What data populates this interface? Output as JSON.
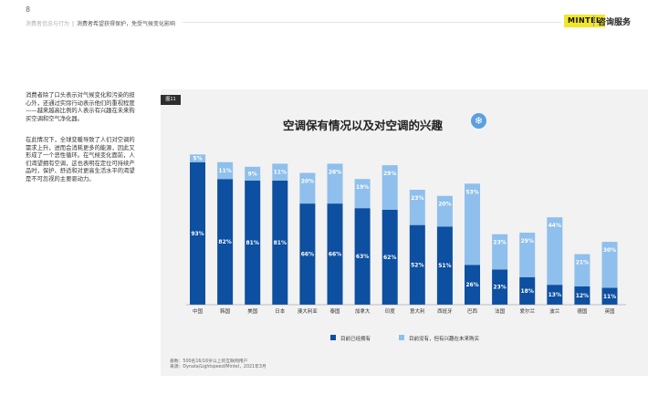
{
  "page": {
    "number": "8"
  },
  "header": {
    "breadcrumb_section": "消费者信念与行为",
    "breadcrumb_current": "消费者希望获得保护，免受气候变化影响",
    "logo": "MINTEL",
    "brand_text": "咨询服务"
  },
  "body_text": {
    "p1": "消费者除了口头表示对气候变化和污染的担心外，还通过实际行动表示他们的重视程度——越来越高比例的人表示有兴趣在未来购买空调和空气净化器。",
    "p2": "在此情况下，全球变暖导致了人们对空调的需求上升，进而会消耗更多的能源，因此又形成了一个恶性循环。在气候变化面前，人们渴望拥有空调，这也表明在定位可持续产品时，保护、舒适和对更高生活水平的渴望是不可忽视的主要驱动力。"
  },
  "figure": {
    "tag": "图11",
    "title": "空调保有情况以及对空调的兴趣",
    "icon": "snowflake-icon",
    "base_note": "基数：500名16/16岁以上的互联网用户",
    "source_note": "来源：Dynata/Lightspeed/Mintel，2021年3月"
  },
  "colors": {
    "own": "#0d4fa0",
    "interest": "#8fbfec",
    "panel": "#f2f2f2",
    "snow": "#5ba0dd"
  },
  "chart_data": {
    "type": "bar",
    "stacked": true,
    "title": "空调保有情况以及对空调的兴趣",
    "categories": [
      "中国",
      "韩国",
      "美国",
      "日本",
      "澳大利亚",
      "泰国",
      "加拿大",
      "印度",
      "意大利",
      "西班牙",
      "巴西",
      "法国",
      "爱尔兰",
      "波兰",
      "德国",
      "英国"
    ],
    "series": [
      {
        "name": "目前已经拥有",
        "values": [
          93,
          82,
          81,
          81,
          66,
          66,
          63,
          62,
          52,
          51,
          26,
          23,
          18,
          13,
          12,
          11
        ],
        "labels": [
          "93%",
          "82%",
          "81%",
          "81%",
          "66%",
          "66%",
          "63%",
          "62%",
          "52%",
          "51%",
          "26%",
          "23%",
          "18%",
          "13%",
          "12%",
          "11%"
        ]
      },
      {
        "name": "目前没有，但有兴趣在未来购买",
        "values": [
          5,
          11,
          9,
          11,
          20,
          26,
          19,
          29,
          23,
          20,
          53,
          23,
          29,
          44,
          21,
          30
        ],
        "labels": [
          "5%",
          "11%",
          "9%",
          "11%",
          "20%",
          "26%",
          "19%",
          "29%",
          "23%",
          "20%",
          "53%",
          "23%",
          "29%",
          "44%",
          "21%",
          "30%"
        ]
      }
    ],
    "ylim": [
      0,
      100
    ],
    "grid": false,
    "legend_position": "bottom"
  }
}
